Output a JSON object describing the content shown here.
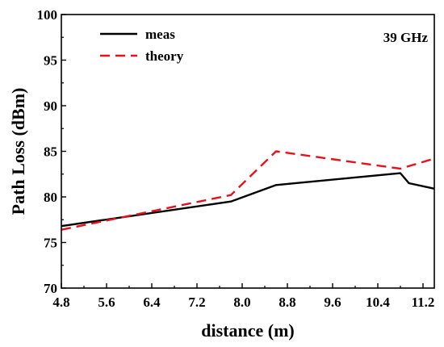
{
  "chart_data": {
    "type": "line",
    "title": "",
    "annotation": "39 GHz",
    "xlabel": "distance (m)",
    "ylabel": "Path Loss (dBm)",
    "xlim": [
      4.8,
      11.4
    ],
    "ylim": [
      70,
      100
    ],
    "xticks": [
      "4.8",
      "5.6",
      "6.4",
      "7.2",
      "8.0",
      "8.8",
      "9.6",
      "10.4",
      "11.2"
    ],
    "yticks": [
      "70",
      "75",
      "80",
      "85",
      "90",
      "95",
      "100"
    ],
    "grid": false,
    "legend_position": "top-left",
    "series": [
      {
        "name": "meas",
        "color": "#000000",
        "dash": "solid",
        "x": [
          4.8,
          7.8,
          8.6,
          10.8,
          10.95,
          11.4
        ],
        "y": [
          76.8,
          79.5,
          81.3,
          82.6,
          81.5,
          80.9
        ]
      },
      {
        "name": "theory",
        "color": "#e8101a",
        "dash": "dashed",
        "x": [
          4.8,
          7.8,
          8.6,
          10.8,
          11.4
        ],
        "y": [
          76.4,
          80.2,
          85.0,
          83.1,
          84.2
        ]
      }
    ]
  }
}
